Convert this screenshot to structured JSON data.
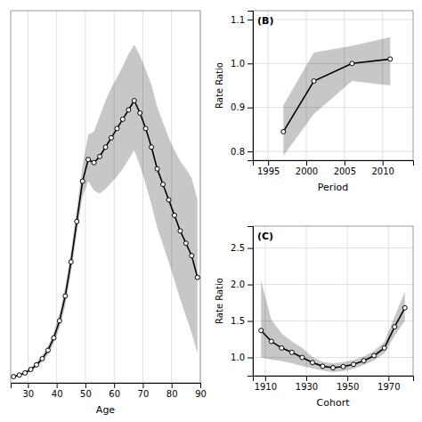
{
  "chart_data": [
    {
      "type": "line",
      "xlabel": "Age",
      "x": [
        25,
        27,
        29,
        31,
        33,
        35,
        37,
        39,
        41,
        43,
        45,
        47,
        49,
        51,
        53,
        55,
        57,
        59,
        61,
        63,
        65,
        67,
        69,
        71,
        73,
        75,
        77,
        79,
        81,
        83,
        85,
        87,
        89
      ],
      "series": [
        {
          "color": "#000000",
          "marker": "circle",
          "values": [
            0.02,
            0.025,
            0.032,
            0.043,
            0.058,
            0.078,
            0.105,
            0.145,
            0.2,
            0.28,
            0.39,
            0.52,
            0.65,
            0.72,
            0.71,
            0.73,
            0.76,
            0.79,
            0.82,
            0.85,
            0.88,
            0.91,
            0.87,
            0.82,
            0.76,
            0.69,
            0.64,
            0.59,
            0.54,
            0.49,
            0.45,
            0.41,
            0.34
          ],
          "lower": [
            0.018,
            0.022,
            0.028,
            0.037,
            0.05,
            0.068,
            0.09,
            0.127,
            0.175,
            0.248,
            0.355,
            0.48,
            0.6,
            0.65,
            0.62,
            0.61,
            0.625,
            0.645,
            0.665,
            0.69,
            0.72,
            0.75,
            0.7,
            0.64,
            0.575,
            0.5,
            0.445,
            0.39,
            0.33,
            0.27,
            0.215,
            0.16,
            0.095
          ],
          "upper": [
            0.022,
            0.028,
            0.036,
            0.049,
            0.066,
            0.088,
            0.12,
            0.163,
            0.225,
            0.312,
            0.425,
            0.56,
            0.7,
            0.8,
            0.81,
            0.86,
            0.91,
            0.95,
            0.985,
            1.02,
            1.06,
            1.09,
            1.055,
            1.01,
            0.96,
            0.89,
            0.84,
            0.79,
            0.75,
            0.715,
            0.69,
            0.66,
            0.59
          ]
        }
      ],
      "xlim": [
        24,
        90
      ],
      "ylim": [
        0.0,
        1.2
      ],
      "xticks": [
        30,
        40,
        50,
        60,
        70,
        80,
        90
      ],
      "tick_labels": "x",
      "grid": true
    },
    {
      "type": "line",
      "title": "(B)",
      "xlabel": "Period",
      "ylabel": "Rate Ratio",
      "x": [
        1997,
        2001,
        2006,
        2011
      ],
      "series": [
        {
          "color": "#000000",
          "marker": "circle",
          "values": [
            0.845,
            0.96,
            1.0,
            1.01
          ],
          "lower": [
            0.79,
            0.885,
            0.96,
            0.95
          ],
          "upper": [
            0.905,
            1.025,
            1.04,
            1.06
          ]
        }
      ],
      "xlim": [
        1993,
        2014
      ],
      "xticks": [
        1995,
        2000,
        2005,
        2010
      ],
      "ylim": [
        0.78,
        1.12
      ],
      "yticks": [
        0.8,
        0.9,
        {
          "value": 1.0,
          "label": "1.0"
        },
        1.1
      ],
      "grid": true
    },
    {
      "type": "line",
      "title": "(C)",
      "xlabel": "Cohort",
      "ylabel": "Rate Ratio",
      "x": [
        1908,
        1913,
        1918,
        1923,
        1928,
        1933,
        1938,
        1943,
        1948,
        1953,
        1958,
        1963,
        1968,
        1973,
        1978
      ],
      "series": [
        {
          "color": "#000000",
          "marker": "circle",
          "values": [
            1.37,
            1.22,
            1.13,
            1.07,
            1.0,
            0.93,
            0.88,
            0.86,
            0.875,
            0.905,
            0.955,
            1.025,
            1.13,
            1.42,
            1.68
          ],
          "lower": [
            1.0,
            0.97,
            0.95,
            0.92,
            0.88,
            0.85,
            0.82,
            0.8,
            0.815,
            0.845,
            0.895,
            0.96,
            1.055,
            1.295,
            1.5
          ],
          "upper": [
            2.05,
            1.52,
            1.33,
            1.22,
            1.13,
            1.01,
            0.94,
            0.92,
            0.935,
            0.965,
            1.015,
            1.09,
            1.215,
            1.56,
            1.9
          ]
        }
      ],
      "xlim": [
        1904,
        1982
      ],
      "xticks": [
        1910,
        1930,
        1950,
        1970
      ],
      "ylim": [
        0.75,
        2.8
      ],
      "yticks": [
        {
          "value": 1.0,
          "label": "1.0"
        },
        1.5,
        {
          "value": 2.0,
          "label": "2.0"
        },
        2.5
      ],
      "grid": true
    }
  ]
}
